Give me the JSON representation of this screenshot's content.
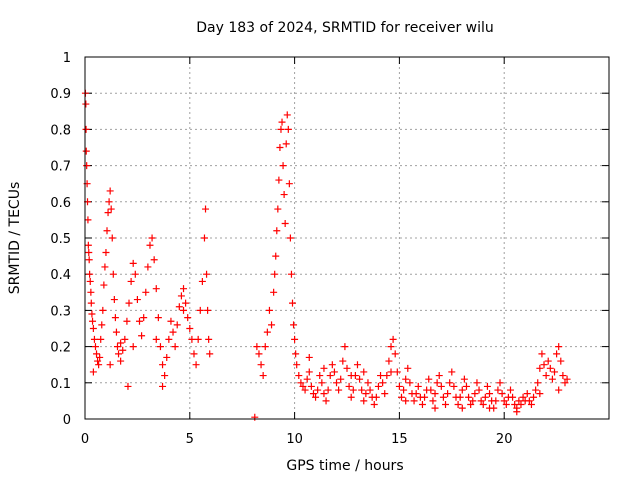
{
  "chart_data": {
    "type": "scatter",
    "title": "Day 183 of 2024, SRMTID for receiver wilu",
    "xlabel": "GPS time / hours",
    "ylabel": "SRMTID / TECUs",
    "xlim": [
      0,
      25
    ],
    "ylim": [
      0,
      1
    ],
    "xticks": [
      0,
      5,
      10,
      15,
      20
    ],
    "yticks": [
      0,
      0.1,
      0.2,
      0.3,
      0.4,
      0.5,
      0.6,
      0.7,
      0.8,
      0.9,
      1
    ],
    "xtick_labels": [
      "0",
      "5",
      "10",
      "15",
      "20"
    ],
    "ytick_labels": [
      "0",
      "0.1",
      "0.2",
      "0.3",
      "0.4",
      "0.5",
      "0.6",
      "0.7",
      "0.8",
      "0.9",
      "1"
    ],
    "grid": true,
    "marker": "plus",
    "color": "#ff0000",
    "series": [
      {
        "name": "SRMTID",
        "points": [
          [
            0.02,
            0.9
          ],
          [
            0.04,
            0.87
          ],
          [
            0.05,
            0.8
          ],
          [
            0.06,
            0.74
          ],
          [
            0.08,
            0.7
          ],
          [
            0.1,
            0.65
          ],
          [
            0.12,
            0.6
          ],
          [
            0.14,
            0.55
          ],
          [
            0.16,
            0.48
          ],
          [
            0.18,
            0.46
          ],
          [
            0.2,
            0.44
          ],
          [
            0.22,
            0.4
          ],
          [
            0.25,
            0.38
          ],
          [
            0.28,
            0.35
          ],
          [
            0.3,
            0.32
          ],
          [
            0.33,
            0.29
          ],
          [
            0.36,
            0.27
          ],
          [
            0.4,
            0.25
          ],
          [
            0.45,
            0.22
          ],
          [
            0.5,
            0.2
          ],
          [
            0.55,
            0.18
          ],
          [
            0.6,
            0.16
          ],
          [
            0.65,
            0.15
          ],
          [
            0.7,
            0.17
          ],
          [
            0.75,
            0.22
          ],
          [
            0.8,
            0.26
          ],
          [
            0.85,
            0.3
          ],
          [
            0.9,
            0.37
          ],
          [
            0.95,
            0.42
          ],
          [
            1.0,
            0.46
          ],
          [
            1.05,
            0.52
          ],
          [
            1.1,
            0.57
          ],
          [
            1.15,
            0.6
          ],
          [
            1.2,
            0.63
          ],
          [
            1.25,
            0.58
          ],
          [
            1.3,
            0.5
          ],
          [
            1.35,
            0.4
          ],
          [
            1.4,
            0.33
          ],
          [
            1.45,
            0.28
          ],
          [
            1.5,
            0.24
          ],
          [
            1.55,
            0.2
          ],
          [
            1.6,
            0.18
          ],
          [
            1.7,
            0.16
          ],
          [
            1.8,
            0.19
          ],
          [
            1.9,
            0.22
          ],
          [
            2.0,
            0.27
          ],
          [
            2.1,
            0.32
          ],
          [
            2.2,
            0.38
          ],
          [
            2.3,
            0.43
          ],
          [
            2.4,
            0.4
          ],
          [
            2.5,
            0.33
          ],
          [
            2.6,
            0.27
          ],
          [
            2.7,
            0.23
          ],
          [
            2.8,
            0.28
          ],
          [
            2.9,
            0.35
          ],
          [
            3.0,
            0.42
          ],
          [
            3.1,
            0.48
          ],
          [
            3.2,
            0.5
          ],
          [
            3.3,
            0.44
          ],
          [
            3.4,
            0.36
          ],
          [
            3.5,
            0.28
          ],
          [
            3.6,
            0.2
          ],
          [
            3.7,
            0.15
          ],
          [
            3.8,
            0.12
          ],
          [
            3.9,
            0.17
          ],
          [
            4.0,
            0.22
          ],
          [
            4.1,
            0.27
          ],
          [
            4.2,
            0.24
          ],
          [
            4.3,
            0.2
          ],
          [
            4.4,
            0.26
          ],
          [
            4.5,
            0.31
          ],
          [
            4.6,
            0.34
          ],
          [
            4.7,
            0.36
          ],
          [
            4.8,
            0.32
          ],
          [
            4.9,
            0.28
          ],
          [
            5.0,
            0.25
          ],
          [
            5.1,
            0.22
          ],
          [
            5.2,
            0.18
          ],
          [
            5.3,
            0.15
          ],
          [
            5.4,
            0.22
          ],
          [
            5.5,
            0.3
          ],
          [
            5.6,
            0.38
          ],
          [
            5.7,
            0.5
          ],
          [
            5.75,
            0.58
          ],
          [
            5.8,
            0.4
          ],
          [
            5.85,
            0.3
          ],
          [
            5.9,
            0.22
          ],
          [
            5.95,
            0.18
          ],
          [
            2.05,
            0.09
          ],
          [
            3.7,
            0.09
          ],
          [
            1.2,
            0.15
          ],
          [
            0.4,
            0.13
          ],
          [
            4.7,
            0.3
          ],
          [
            3.4,
            0.22
          ],
          [
            2.3,
            0.2
          ],
          [
            1.7,
            0.21
          ],
          [
            8.1,
            0.005
          ],
          [
            8.2,
            0.2
          ],
          [
            8.3,
            0.18
          ],
          [
            8.4,
            0.15
          ],
          [
            8.5,
            0.12
          ],
          [
            8.6,
            0.2
          ],
          [
            8.7,
            0.24
          ],
          [
            8.8,
            0.3
          ],
          [
            8.9,
            0.26
          ],
          [
            9.0,
            0.35
          ],
          [
            9.05,
            0.4
          ],
          [
            9.1,
            0.45
          ],
          [
            9.15,
            0.52
          ],
          [
            9.2,
            0.58
          ],
          [
            9.25,
            0.66
          ],
          [
            9.3,
            0.75
          ],
          [
            9.35,
            0.8
          ],
          [
            9.4,
            0.82
          ],
          [
            9.45,
            0.7
          ],
          [
            9.5,
            0.62
          ],
          [
            9.55,
            0.54
          ],
          [
            9.6,
            0.76
          ],
          [
            9.65,
            0.84
          ],
          [
            9.7,
            0.8
          ],
          [
            9.75,
            0.65
          ],
          [
            9.8,
            0.5
          ],
          [
            9.85,
            0.4
          ],
          [
            9.9,
            0.32
          ],
          [
            9.95,
            0.26
          ],
          [
            10.0,
            0.22
          ],
          [
            10.05,
            0.18
          ],
          [
            10.1,
            0.15
          ],
          [
            10.2,
            0.12
          ],
          [
            10.3,
            0.1
          ],
          [
            10.4,
            0.09
          ],
          [
            10.5,
            0.08
          ],
          [
            10.6,
            0.11
          ],
          [
            10.7,
            0.13
          ],
          [
            10.8,
            0.09
          ],
          [
            10.9,
            0.07
          ],
          [
            11.0,
            0.06
          ],
          [
            11.1,
            0.08
          ],
          [
            11.2,
            0.12
          ],
          [
            11.3,
            0.1
          ],
          [
            11.4,
            0.07
          ],
          [
            11.5,
            0.05
          ],
          [
            11.6,
            0.08
          ],
          [
            11.7,
            0.12
          ],
          [
            11.8,
            0.15
          ],
          [
            11.9,
            0.13
          ],
          [
            12.0,
            0.1
          ],
          [
            12.1,
            0.08
          ],
          [
            12.2,
            0.11
          ],
          [
            12.3,
            0.16
          ],
          [
            12.4,
            0.2
          ],
          [
            12.5,
            0.14
          ],
          [
            12.6,
            0.09
          ],
          [
            12.7,
            0.06
          ],
          [
            12.8,
            0.08
          ],
          [
            12.9,
            0.12
          ],
          [
            13.0,
            0.15
          ],
          [
            13.1,
            0.11
          ],
          [
            13.2,
            0.08
          ],
          [
            13.3,
            0.05
          ],
          [
            13.4,
            0.07
          ],
          [
            13.5,
            0.1
          ],
          [
            13.6,
            0.08
          ],
          [
            13.7,
            0.06
          ],
          [
            13.8,
            0.04
          ],
          [
            13.9,
            0.06
          ],
          [
            14.0,
            0.09
          ],
          [
            14.1,
            0.12
          ],
          [
            14.2,
            0.1
          ],
          [
            14.3,
            0.07
          ],
          [
            14.4,
            0.12
          ],
          [
            14.5,
            0.16
          ],
          [
            14.6,
            0.2
          ],
          [
            14.7,
            0.22
          ],
          [
            14.8,
            0.18
          ],
          [
            14.9,
            0.13
          ],
          [
            15.0,
            0.09
          ],
          [
            15.1,
            0.06
          ],
          [
            15.2,
            0.08
          ],
          [
            15.3,
            0.11
          ],
          [
            15.4,
            0.14
          ],
          [
            15.5,
            0.1
          ],
          [
            15.6,
            0.07
          ],
          [
            15.7,
            0.05
          ],
          [
            15.8,
            0.07
          ],
          [
            15.9,
            0.09
          ],
          [
            16.0,
            0.06
          ],
          [
            16.1,
            0.04
          ],
          [
            16.2,
            0.06
          ],
          [
            16.3,
            0.08
          ],
          [
            16.4,
            0.11
          ],
          [
            16.5,
            0.08
          ],
          [
            16.6,
            0.05
          ],
          [
            16.7,
            0.07
          ],
          [
            16.8,
            0.1
          ],
          [
            16.9,
            0.12
          ],
          [
            17.0,
            0.09
          ],
          [
            17.1,
            0.06
          ],
          [
            17.2,
            0.04
          ],
          [
            17.3,
            0.07
          ],
          [
            17.4,
            0.1
          ],
          [
            17.5,
            0.13
          ],
          [
            17.6,
            0.09
          ],
          [
            17.7,
            0.06
          ],
          [
            17.8,
            0.04
          ],
          [
            17.9,
            0.06
          ],
          [
            18.0,
            0.08
          ],
          [
            18.1,
            0.11
          ],
          [
            18.2,
            0.09
          ],
          [
            18.3,
            0.06
          ],
          [
            18.4,
            0.04
          ],
          [
            18.5,
            0.05
          ],
          [
            18.6,
            0.07
          ],
          [
            18.7,
            0.1
          ],
          [
            18.8,
            0.08
          ],
          [
            18.9,
            0.05
          ],
          [
            19.0,
            0.04
          ],
          [
            19.1,
            0.06
          ],
          [
            19.2,
            0.09
          ],
          [
            19.3,
            0.07
          ],
          [
            19.4,
            0.05
          ],
          [
            19.5,
            0.03
          ],
          [
            19.6,
            0.05
          ],
          [
            19.7,
            0.08
          ],
          [
            19.8,
            0.1
          ],
          [
            19.9,
            0.07
          ],
          [
            20.0,
            0.05
          ],
          [
            20.1,
            0.04
          ],
          [
            20.2,
            0.06
          ],
          [
            20.3,
            0.08
          ],
          [
            20.4,
            0.06
          ],
          [
            20.5,
            0.04
          ],
          [
            20.6,
            0.03
          ],
          [
            20.7,
            0.05
          ],
          [
            20.8,
            0.04
          ],
          [
            20.9,
            0.06
          ],
          [
            21.0,
            0.05
          ],
          [
            21.1,
            0.07
          ],
          [
            21.2,
            0.05
          ],
          [
            21.3,
            0.04
          ],
          [
            21.4,
            0.06
          ],
          [
            21.5,
            0.08
          ],
          [
            21.6,
            0.1
          ],
          [
            21.7,
            0.14
          ],
          [
            21.8,
            0.18
          ],
          [
            21.9,
            0.15
          ],
          [
            22.0,
            0.12
          ],
          [
            22.1,
            0.16
          ],
          [
            22.2,
            0.14
          ],
          [
            22.3,
            0.11
          ],
          [
            22.4,
            0.13
          ],
          [
            22.5,
            0.18
          ],
          [
            22.6,
            0.2
          ],
          [
            22.7,
            0.16
          ],
          [
            22.8,
            0.12
          ],
          [
            22.9,
            0.1
          ],
          [
            23.0,
            0.11
          ],
          [
            10.7,
            0.17
          ],
          [
            11.4,
            0.14
          ],
          [
            12.7,
            0.12
          ],
          [
            13.3,
            0.13
          ],
          [
            14.6,
            0.13
          ],
          [
            15.3,
            0.05
          ],
          [
            16.7,
            0.03
          ],
          [
            18.0,
            0.03
          ],
          [
            19.3,
            0.03
          ],
          [
            20.6,
            0.02
          ],
          [
            21.7,
            0.07
          ],
          [
            22.6,
            0.08
          ]
        ]
      }
    ]
  }
}
